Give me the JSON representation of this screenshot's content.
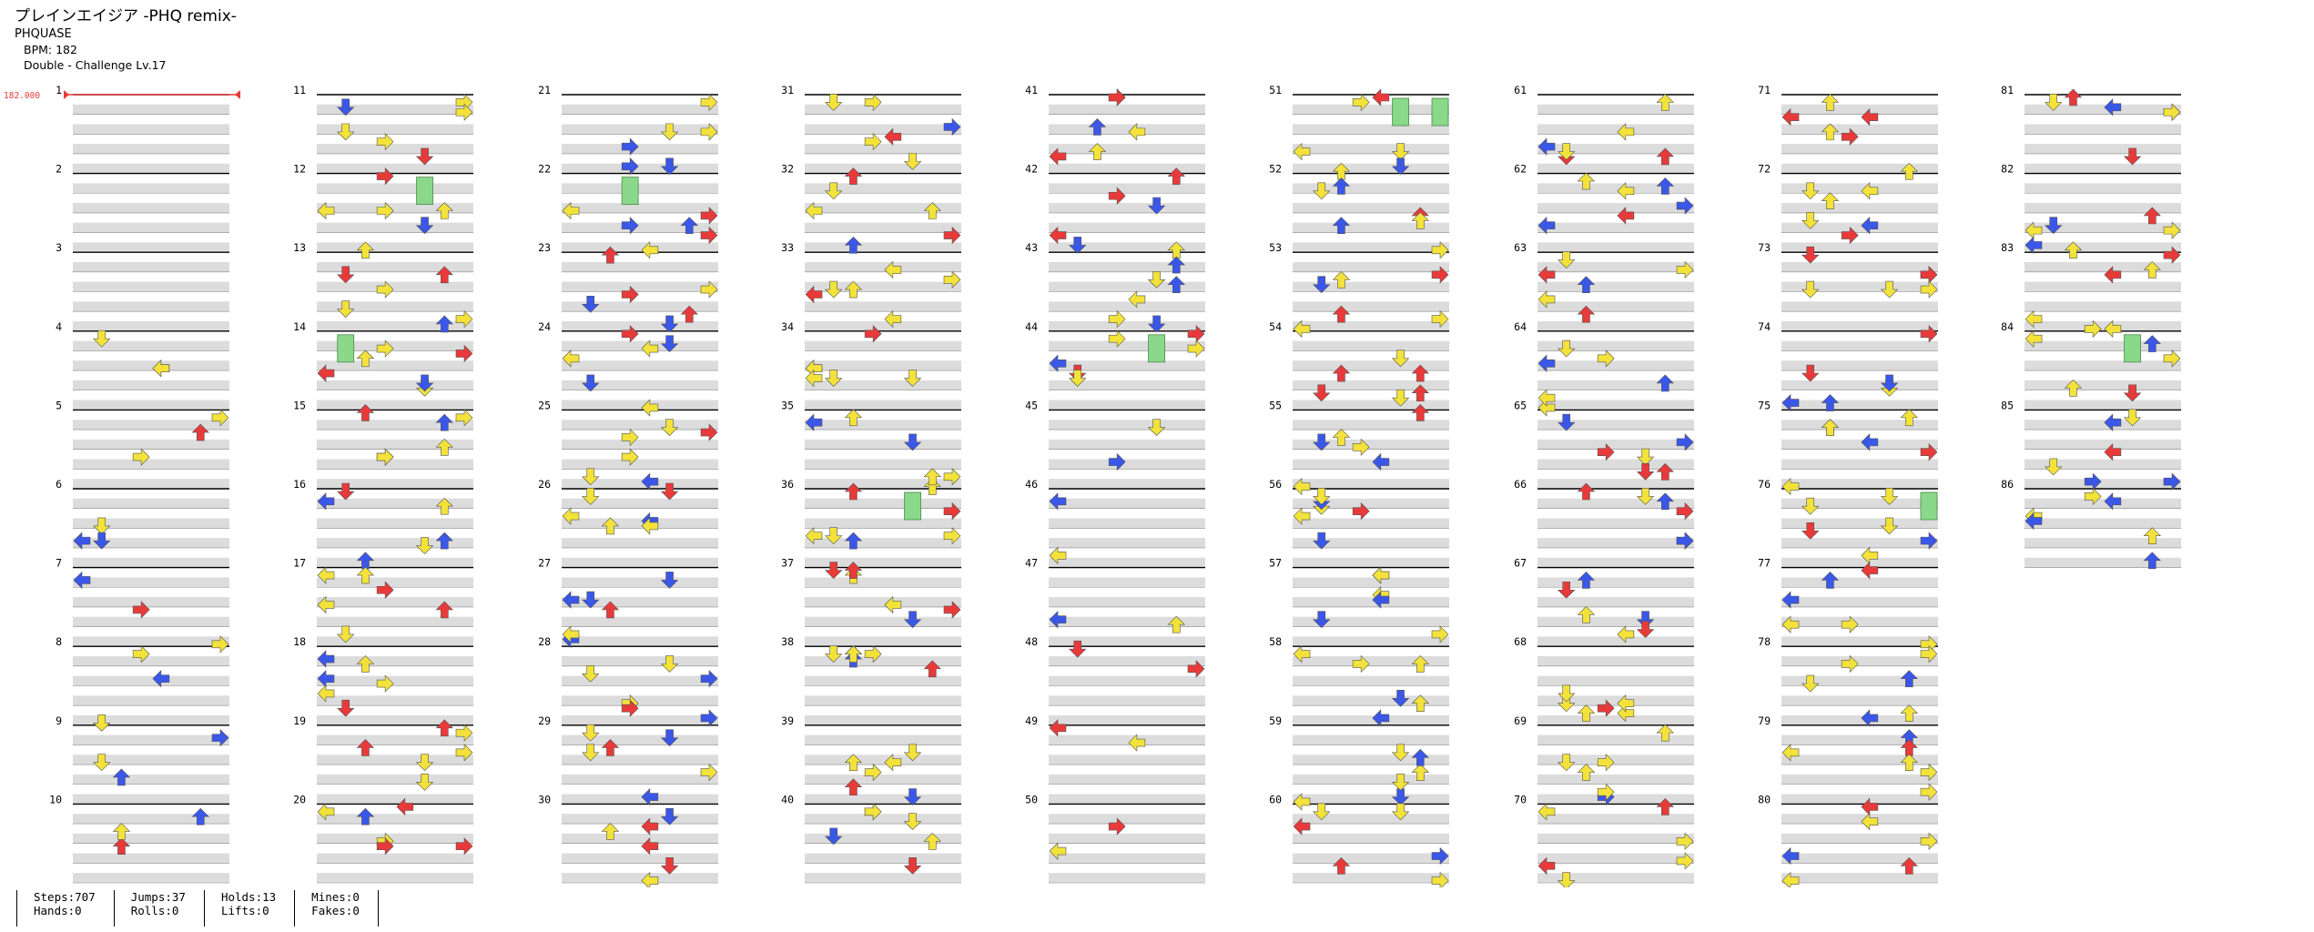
{
  "song": {
    "title": "プレインエイジア -PHQ remix-",
    "artist": "PHQUASE",
    "bpm_text": "BPM: 182",
    "difficulty_text": "Double - Challenge  Lv.17"
  },
  "bpm_marker": {
    "value": "182.000"
  },
  "measure_numbers": [
    "1",
    "2",
    "3",
    "4",
    "5",
    "6",
    "7",
    "8",
    "9",
    "10",
    "11",
    "12",
    "13",
    "14",
    "15",
    "16",
    "17",
    "18",
    "19",
    "20",
    "21",
    "22",
    "23",
    "24",
    "25",
    "26",
    "27",
    "28",
    "29",
    "30",
    "31",
    "32",
    "33",
    "34",
    "35",
    "36",
    "37",
    "38",
    "39",
    "40",
    "41",
    "42",
    "43",
    "44",
    "45",
    "46",
    "47",
    "48",
    "49",
    "50",
    "51",
    "52",
    "53",
    "54",
    "55",
    "56",
    "57",
    "58",
    "59",
    "60",
    "61",
    "62",
    "63",
    "64",
    "65",
    "66",
    "67",
    "68",
    "69",
    "70",
    "71",
    "72",
    "73",
    "74",
    "75",
    "76",
    "77",
    "78",
    "79",
    "80",
    "81",
    "82",
    "83",
    "84",
    "85",
    "86"
  ],
  "colors": {
    "quarter": "#e83a3a",
    "eighth": "#3a57e8",
    "sixteenth": "#f2e23a",
    "other": "#a040e8",
    "hold": "#8ad88a",
    "lane_shade": "#dcdcdc",
    "bpm": "#e83a3a"
  },
  "icons": [
    "left-arrow-icon",
    "down-arrow-icon",
    "up-arrow-icon",
    "right-arrow-icon",
    "hold-note-icon"
  ],
  "stats": {
    "steps": "Steps:707",
    "hands": "Hands:0",
    "jumps": "Jumps:37",
    "rolls": "Rolls:0",
    "holds": "Holds:13",
    "lifts": "Lifts:0",
    "mines": "Mines:0",
    "fakes": "Fakes:0"
  }
}
